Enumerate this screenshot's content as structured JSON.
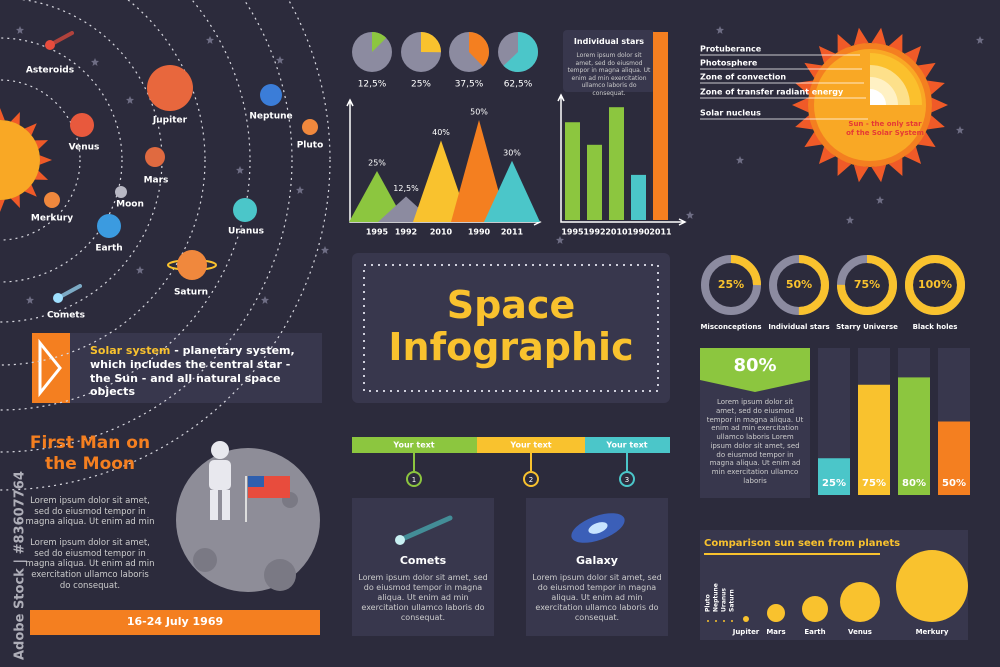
{
  "watermark": "Adobe Stock | #83607764",
  "solar_system": {
    "planets": [
      "Asteroids",
      "Venus",
      "Jupiter",
      "Neptune",
      "Pluto",
      "Mars",
      "Moon",
      "Merkury",
      "Earth",
      "Uranus",
      "Saturn",
      "Comets"
    ],
    "note_term": "Solar system",
    "note_text": " - planetary system, which includes the central star - the Sun - and all natural space objects"
  },
  "pies": [
    {
      "value": 12.5,
      "label": "12,5%"
    },
    {
      "value": 25,
      "label": "25%"
    },
    {
      "value": 37.5,
      "label": "37,5%"
    },
    {
      "value": 62.5,
      "label": "62,5%"
    }
  ],
  "triangle_chart": {
    "categories": [
      "1995",
      "1992",
      "2010",
      "1990",
      "2011"
    ],
    "values": [
      25,
      12.5,
      40,
      50,
      30
    ],
    "value_labels": [
      "25%",
      "12,5%",
      "40%",
      "50%",
      "30%"
    ]
  },
  "individual_stars": {
    "title": "Individual stars",
    "text": "Lorem ipsum dolor sit amet, sed do eiusmod tempor in magna aliqua. Ut enim ad min exercitation ullamco laboris do consequat."
  },
  "bar_chart": {
    "categories": [
      "1995",
      "1992",
      "2010",
      "1990",
      "2011"
    ],
    "values": [
      52,
      40,
      60,
      24,
      100
    ]
  },
  "sun": {
    "layers": [
      "Protuberance",
      "Photosphere",
      "Zone of convection",
      "Zone of transfer radiant energy",
      "Solar nucleus"
    ],
    "caption": "Sun - the only star of the Solar System"
  },
  "title": {
    "line1": "Space",
    "line2": "Infographic"
  },
  "rings": [
    {
      "value": 25,
      "label": "25%",
      "name": "Misconceptions"
    },
    {
      "value": 50,
      "label": "50%",
      "name": "Individual stars"
    },
    {
      "value": 75,
      "label": "75%",
      "name": "Starry Universe"
    },
    {
      "value": 100,
      "label": "100%",
      "name": "Black holes"
    }
  ],
  "highlight": {
    "label": "80%",
    "text": "Lorem ipsum dolor sit amet, sed do eiusmod tempor in magna aliqua. Ut enim ad min exercitation ullamco laboris Lorem ipsum dolor sit amet, sed do eiusmod tempor in magna aliqua. Ut enim ad min exercitation ullamco laboris"
  },
  "vertical_bars": {
    "values": [
      25,
      75,
      80,
      50
    ],
    "value_labels": [
      "25%",
      "75%",
      "80%",
      "50%"
    ]
  },
  "first_man": {
    "title": "First Man on the Moon",
    "paragraphs": [
      "Lorem ipsum dolor sit amet, sed do eiusmod tempor in magna aliqua. Ut enim ad min",
      "Lorem ipsum dolor sit amet, sed do eiusmod tempor in magna aliqua. Ut enim ad min exercitation ullamco laboris do consequat."
    ],
    "date": "16-24 July 1969"
  },
  "timeline": [
    {
      "label": "Your text",
      "number": 1
    },
    {
      "label": "Your text",
      "number": 2
    },
    {
      "label": "Your text",
      "number": 3
    }
  ],
  "cards": [
    {
      "title": "Comets",
      "text": "Lorem ipsum dolor sit amet, sed do eiusmod tempor in magna aliqua. Ut enim ad min exercitation ullamco laboris do consequat."
    },
    {
      "title": "Galaxy",
      "text": "Lorem ipsum dolor sit amet, sed do eiusmod tempor in magna aliqua. Ut enim ad min exercitation ullamco laboris do consequat."
    }
  ],
  "comparison": {
    "title": "Comparison sun seen from planets",
    "planets": [
      "Pluto",
      "Neptune",
      "Uranus",
      "Saturn",
      "Jupiter",
      "Mars",
      "Earth",
      "Venus",
      "Merkury"
    ],
    "sizes": [
      2,
      2,
      2,
      2,
      6,
      18,
      26,
      40,
      72
    ]
  }
}
